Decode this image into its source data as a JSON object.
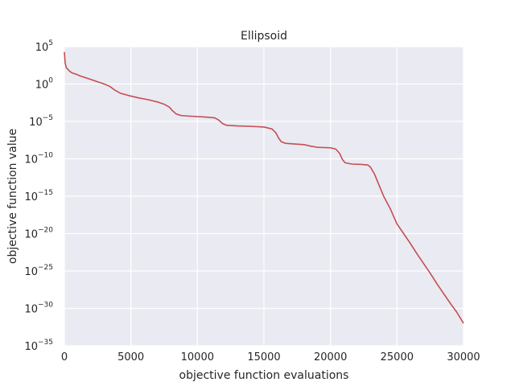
{
  "chart_data": {
    "type": "line",
    "title": "Ellipsoid",
    "xlabel": "objective function evaluations",
    "ylabel": "objective function value",
    "xlim": [
      0,
      30000
    ],
    "ylim": [
      1e-35,
      100000.0
    ],
    "yscale": "log",
    "grid": true,
    "xticks": [
      0,
      5000,
      10000,
      15000,
      20000,
      25000,
      30000
    ],
    "xtick_labels": [
      "0",
      "5000",
      "10000",
      "15000",
      "20000",
      "25000",
      "30000"
    ],
    "yticks": [
      100000.0,
      1.0,
      1e-05,
      1e-10,
      1e-15,
      1e-20,
      1e-25,
      1e-30,
      1e-35
    ],
    "ytick_labels": [
      {
        "base": "10",
        "exp": "5"
      },
      {
        "base": "10",
        "exp": "0"
      },
      {
        "base": "10",
        "exp": "−5"
      },
      {
        "base": "10",
        "exp": "−10"
      },
      {
        "base": "10",
        "exp": "−15"
      },
      {
        "base": "10",
        "exp": "−20"
      },
      {
        "base": "10",
        "exp": "−25"
      },
      {
        "base": "10",
        "exp": "−30"
      },
      {
        "base": "10",
        "exp": "−35"
      }
    ],
    "series": [
      {
        "color": "#c44e52",
        "x": [
          0,
          60,
          150,
          250,
          400,
          600,
          900,
          1200,
          1500,
          2000,
          2500,
          3000,
          3400,
          3800,
          4200,
          4800,
          5500,
          6300,
          7000,
          7500,
          7900,
          8100,
          8400,
          8800,
          9500,
          10500,
          11300,
          11600,
          11900,
          12200,
          13000,
          14000,
          15000,
          15600,
          15900,
          16100,
          16300,
          16600,
          17200,
          18000,
          18500,
          19000,
          20000,
          20400,
          20700,
          20900,
          21100,
          21600,
          22300,
          22800,
          23000,
          23300,
          23600,
          24000,
          24500,
          25000,
          25500,
          26000,
          26500,
          27000,
          27500,
          28000,
          28500,
          29000,
          29500,
          30000
        ],
        "y": [
          20000.0,
          600.0,
          150.0,
          100.0,
          50.0,
          30.0,
          20.0,
          12.0,
          8,
          4,
          2,
          1,
          0.5,
          0.15,
          0.06,
          0.03,
          0.015,
          0.008,
          0.004,
          0.002,
          0.0008,
          0.0003,
          0.0001,
          6e-05,
          5e-05,
          4e-05,
          3e-05,
          1.5e-05,
          5e-06,
          3e-06,
          2.5e-06,
          2.2e-06,
          1.8e-06,
          1e-06,
          3e-07,
          6e-08,
          2e-08,
          1.2e-08,
          1e-08,
          8e-09,
          5e-09,
          3.5e-09,
          3e-09,
          2e-09,
          5e-10,
          8e-11,
          3e-11,
          2e-11,
          1.8e-11,
          1.5e-11,
          8e-12,
          1e-12,
          5e-14,
          1e-15,
          2e-17,
          2e-19,
          1e-20,
          5e-22,
          2e-23,
          1e-24,
          5e-26,
          2e-27,
          1e-28,
          5e-30,
          3e-31,
          1e-32
        ]
      }
    ]
  }
}
